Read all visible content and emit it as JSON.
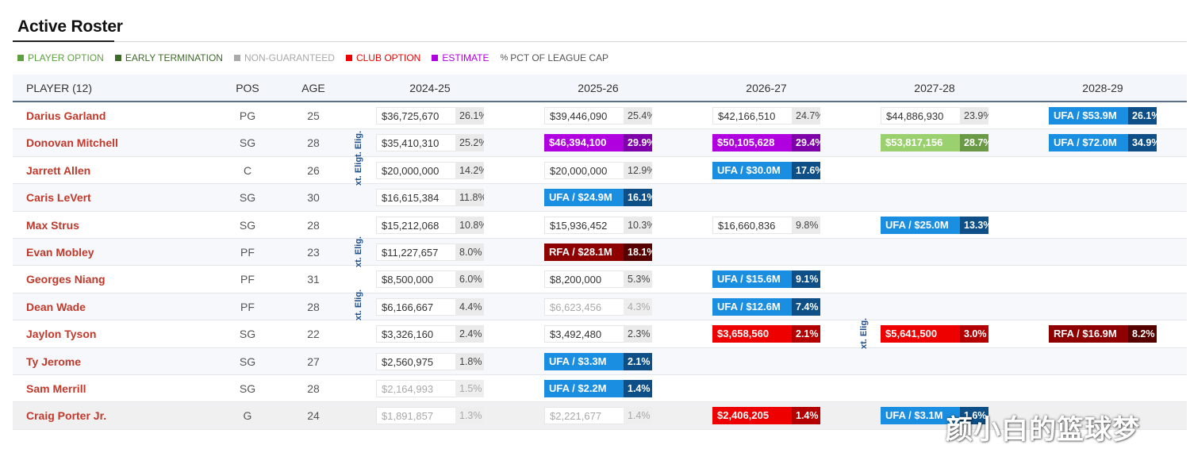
{
  "title": "Active Roster",
  "legend": [
    {
      "label": "PLAYER OPTION",
      "color": "#5ea040"
    },
    {
      "label": "EARLY TERMINATION",
      "color": "#3e6b2a"
    },
    {
      "label": "NON-GUARANTEED",
      "color": "#a9a9a9"
    },
    {
      "label": "CLUB OPTION",
      "color": "#ee0000"
    },
    {
      "label": "ESTIMATE",
      "color": "#b000e0"
    },
    {
      "label": "PCT OF LEAGUE CAP",
      "color": "#555555"
    }
  ],
  "headers": {
    "player": "PLAYER (12)",
    "pos": "POS",
    "age": "AGE",
    "y2024": "2024-25",
    "y2025": "2025-26",
    "y2026": "2026-27",
    "y2027": "2027-28",
    "y2028": "2028-29"
  },
  "ext_label": "xt. Eligt. Elig.",
  "ext_label_short": "xt. Elig.",
  "rows": [
    {
      "name": "Darius Garland",
      "pos": "PG",
      "age": "25",
      "y2024": {
        "amt": "$36,725,670",
        "pct": "26.1%"
      },
      "y2025": {
        "amt": "$39,446,090",
        "pct": "25.4%"
      },
      "y2026": {
        "amt": "$42,166,510",
        "pct": "24.7%"
      },
      "y2027": {
        "amt": "$44,886,930",
        "pct": "23.9%"
      },
      "y2028": {
        "amt": "UFA / $53.9M",
        "pct": "26.1%"
      }
    },
    {
      "name": "Donovan Mitchell",
      "pos": "SG",
      "age": "28",
      "y2024": {
        "amt": "$35,410,310",
        "pct": "25.2%"
      },
      "y2025": {
        "amt": "$46,394,100",
        "pct": "29.9%"
      },
      "y2026": {
        "amt": "$50,105,628",
        "pct": "29.4%"
      },
      "y2027": {
        "amt": "$53,817,156",
        "pct": "28.7%"
      },
      "y2028": {
        "amt": "UFA / $72.0M",
        "pct": "34.9%"
      }
    },
    {
      "name": "Jarrett Allen",
      "pos": "C",
      "age": "26",
      "y2024": {
        "amt": "$20,000,000",
        "pct": "14.2%"
      },
      "y2025": {
        "amt": "$20,000,000",
        "pct": "12.9%"
      },
      "y2026": {
        "amt": "UFA / $30.0M",
        "pct": "17.6%"
      }
    },
    {
      "name": "Caris LeVert",
      "pos": "SG",
      "age": "30",
      "y2024": {
        "amt": "$16,615,384",
        "pct": "11.8%"
      },
      "y2025": {
        "amt": "UFA / $24.9M",
        "pct": "16.1%"
      }
    },
    {
      "name": "Max Strus",
      "pos": "SG",
      "age": "28",
      "y2024": {
        "amt": "$15,212,068",
        "pct": "10.8%"
      },
      "y2025": {
        "amt": "$15,936,452",
        "pct": "10.3%"
      },
      "y2026": {
        "amt": "$16,660,836",
        "pct": "9.8%"
      },
      "y2027": {
        "amt": "UFA / $25.0M",
        "pct": "13.3%"
      }
    },
    {
      "name": "Evan Mobley",
      "pos": "PF",
      "age": "23",
      "y2024": {
        "amt": "$11,227,657",
        "pct": "8.0%"
      },
      "y2025": {
        "amt": "RFA / $28.1M",
        "pct": "18.1%"
      }
    },
    {
      "name": "Georges Niang",
      "pos": "PF",
      "age": "31",
      "y2024": {
        "amt": "$8,500,000",
        "pct": "6.0%"
      },
      "y2025": {
        "amt": "$8,200,000",
        "pct": "5.3%"
      },
      "y2026": {
        "amt": "UFA / $15.6M",
        "pct": "9.1%"
      }
    },
    {
      "name": "Dean Wade",
      "pos": "PF",
      "age": "28",
      "y2024": {
        "amt": "$6,166,667",
        "pct": "4.4%"
      },
      "y2025": {
        "amt": "$6,623,456",
        "pct": "4.3%"
      },
      "y2026": {
        "amt": "UFA / $12.6M",
        "pct": "7.4%"
      }
    },
    {
      "name": "Jaylon Tyson",
      "pos": "SG",
      "age": "22",
      "y2024": {
        "amt": "$3,326,160",
        "pct": "2.4%"
      },
      "y2025": {
        "amt": "$3,492,480",
        "pct": "2.3%"
      },
      "y2026": {
        "amt": "$3,658,560",
        "pct": "2.1%"
      },
      "y2027": {
        "amt": "$5,641,500",
        "pct": "3.0%"
      },
      "y2028": {
        "amt": "RFA / $16.9M",
        "pct": "8.2%"
      }
    },
    {
      "name": "Ty Jerome",
      "pos": "SG",
      "age": "27",
      "y2024": {
        "amt": "$2,560,975",
        "pct": "1.8%"
      },
      "y2025": {
        "amt": "UFA / $3.3M",
        "pct": "2.1%"
      }
    },
    {
      "name": "Sam Merrill",
      "pos": "SG",
      "age": "28",
      "y2024": {
        "amt": "$2,164,993",
        "pct": "1.5%"
      },
      "y2025": {
        "amt": "UFA / $2.2M",
        "pct": "1.4%"
      }
    },
    {
      "name": "Craig Porter Jr.",
      "pos": "G",
      "age": "24",
      "y2024": {
        "amt": "$1,891,857",
        "pct": "1.3%"
      },
      "y2025": {
        "amt": "$2,221,677",
        "pct": "1.4%"
      },
      "y2026": {
        "amt": "$2,406,205",
        "pct": "1.4%"
      },
      "y2027": {
        "amt": "UFA / $3.1M",
        "pct": "1.6%"
      }
    }
  ],
  "watermark": "颜小白的篮球梦"
}
